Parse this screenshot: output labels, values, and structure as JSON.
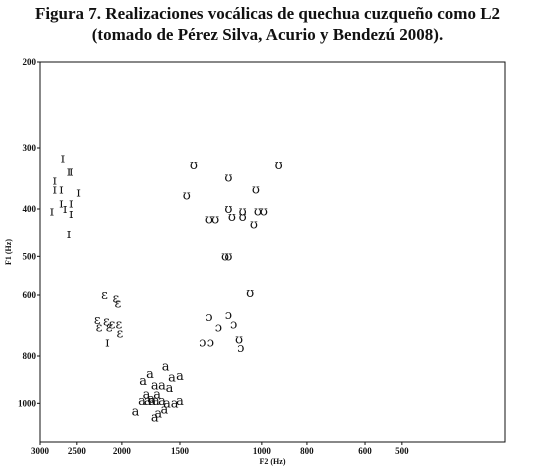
{
  "title_line1": "Figura 7. Realizaciones vocálicas de quechua cuzqueño como L2",
  "title_line2": "(tomado de Pérez Silva, Acurio y Bendezú 2008).",
  "chart_data": {
    "type": "scatter",
    "xlabel": "F2 (Hz)",
    "ylabel": "F1 (Hz)",
    "x_reversed": true,
    "xlim": [
      3000,
      300
    ],
    "ylim": [
      200,
      1200
    ],
    "xticks": [
      3000,
      2500,
      2000,
      1500,
      1000,
      800,
      600,
      500
    ],
    "yticks": [
      200,
      300,
      400,
      500,
      600,
      800,
      1000
    ],
    "grid": false,
    "points": [
      {
        "x": 2680,
        "y": 315,
        "label": "ɪ"
      },
      {
        "x": 2600,
        "y": 335,
        "label": "ɪ"
      },
      {
        "x": 2570,
        "y": 335,
        "label": "ɪ"
      },
      {
        "x": 2790,
        "y": 350,
        "label": "ɪ"
      },
      {
        "x": 2790,
        "y": 365,
        "label": "ɪ"
      },
      {
        "x": 2700,
        "y": 365,
        "label": "ɪ"
      },
      {
        "x": 2480,
        "y": 370,
        "label": "ɪ"
      },
      {
        "x": 2700,
        "y": 390,
        "label": "ɪ"
      },
      {
        "x": 2570,
        "y": 390,
        "label": "ɪ"
      },
      {
        "x": 2650,
        "y": 400,
        "label": "ɪ"
      },
      {
        "x": 2830,
        "y": 405,
        "label": "ɪ"
      },
      {
        "x": 2570,
        "y": 410,
        "label": "ɪ"
      },
      {
        "x": 2600,
        "y": 450,
        "label": "ɪ"
      },
      {
        "x": 2180,
        "y": 600,
        "label": "ɛ"
      },
      {
        "x": 2060,
        "y": 610,
        "label": "ɛ"
      },
      {
        "x": 2040,
        "y": 625,
        "label": "ɛ"
      },
      {
        "x": 2260,
        "y": 675,
        "label": "ɛ"
      },
      {
        "x": 2160,
        "y": 680,
        "label": "ɛ"
      },
      {
        "x": 2100,
        "y": 690,
        "label": "ɛ"
      },
      {
        "x": 2240,
        "y": 700,
        "label": "ɛ"
      },
      {
        "x": 2130,
        "y": 700,
        "label": "ɛ"
      },
      {
        "x": 2030,
        "y": 690,
        "label": "ɛ"
      },
      {
        "x": 2020,
        "y": 720,
        "label": "ɛ"
      },
      {
        "x": 2150,
        "y": 750,
        "label": "ɪ"
      },
      {
        "x": 1610,
        "y": 840,
        "label": "a"
      },
      {
        "x": 1740,
        "y": 870,
        "label": "a"
      },
      {
        "x": 1560,
        "y": 885,
        "label": "a"
      },
      {
        "x": 1500,
        "y": 880,
        "label": "a"
      },
      {
        "x": 1800,
        "y": 900,
        "label": "a"
      },
      {
        "x": 1700,
        "y": 920,
        "label": "a"
      },
      {
        "x": 1640,
        "y": 920,
        "label": "a"
      },
      {
        "x": 1580,
        "y": 930,
        "label": "a"
      },
      {
        "x": 1770,
        "y": 960,
        "label": "a"
      },
      {
        "x": 1730,
        "y": 980,
        "label": "a"
      },
      {
        "x": 1680,
        "y": 960,
        "label": "a"
      },
      {
        "x": 1810,
        "y": 990,
        "label": "a"
      },
      {
        "x": 1760,
        "y": 990,
        "label": "a"
      },
      {
        "x": 1720,
        "y": 990,
        "label": "a"
      },
      {
        "x": 1690,
        "y": 990,
        "label": "a"
      },
      {
        "x": 1640,
        "y": 990,
        "label": "a"
      },
      {
        "x": 1600,
        "y": 1000,
        "label": "a"
      },
      {
        "x": 1540,
        "y": 1000,
        "label": "a"
      },
      {
        "x": 1500,
        "y": 990,
        "label": "a"
      },
      {
        "x": 1620,
        "y": 1030,
        "label": "a"
      },
      {
        "x": 1870,
        "y": 1040,
        "label": "a"
      },
      {
        "x": 1700,
        "y": 1070,
        "label": "a"
      },
      {
        "x": 1670,
        "y": 1050,
        "label": "a"
      },
      {
        "x": 1400,
        "y": 325,
        "label": "ʊ"
      },
      {
        "x": 1180,
        "y": 345,
        "label": "ʊ"
      },
      {
        "x": 920,
        "y": 325,
        "label": "ʊ"
      },
      {
        "x": 1450,
        "y": 375,
        "label": "ʊ"
      },
      {
        "x": 1030,
        "y": 365,
        "label": "ʊ"
      },
      {
        "x": 1180,
        "y": 400,
        "label": "ʊ"
      },
      {
        "x": 1100,
        "y": 405,
        "label": "ʊ"
      },
      {
        "x": 1020,
        "y": 405,
        "label": "ʊ"
      },
      {
        "x": 990,
        "y": 405,
        "label": "ʊ"
      },
      {
        "x": 1300,
        "y": 420,
        "label": "ʊ"
      },
      {
        "x": 1260,
        "y": 420,
        "label": "ʊ"
      },
      {
        "x": 1160,
        "y": 415,
        "label": "ʊ"
      },
      {
        "x": 1100,
        "y": 415,
        "label": "ʊ"
      },
      {
        "x": 1040,
        "y": 430,
        "label": "ʊ"
      },
      {
        "x": 1200,
        "y": 500,
        "label": "ʊ"
      },
      {
        "x": 1180,
        "y": 500,
        "label": "ʊ"
      },
      {
        "x": 1060,
        "y": 595,
        "label": "ʊ"
      },
      {
        "x": 1180,
        "y": 660,
        "label": "ɔ"
      },
      {
        "x": 1300,
        "y": 665,
        "label": "ɔ"
      },
      {
        "x": 1150,
        "y": 690,
        "label": "ɔ"
      },
      {
        "x": 1240,
        "y": 700,
        "label": "ɔ"
      },
      {
        "x": 1120,
        "y": 740,
        "label": "ʊ"
      },
      {
        "x": 1110,
        "y": 770,
        "label": "ɔ"
      },
      {
        "x": 1340,
        "y": 750,
        "label": "ɔ"
      },
      {
        "x": 1290,
        "y": 750,
        "label": "ɔ"
      }
    ]
  }
}
